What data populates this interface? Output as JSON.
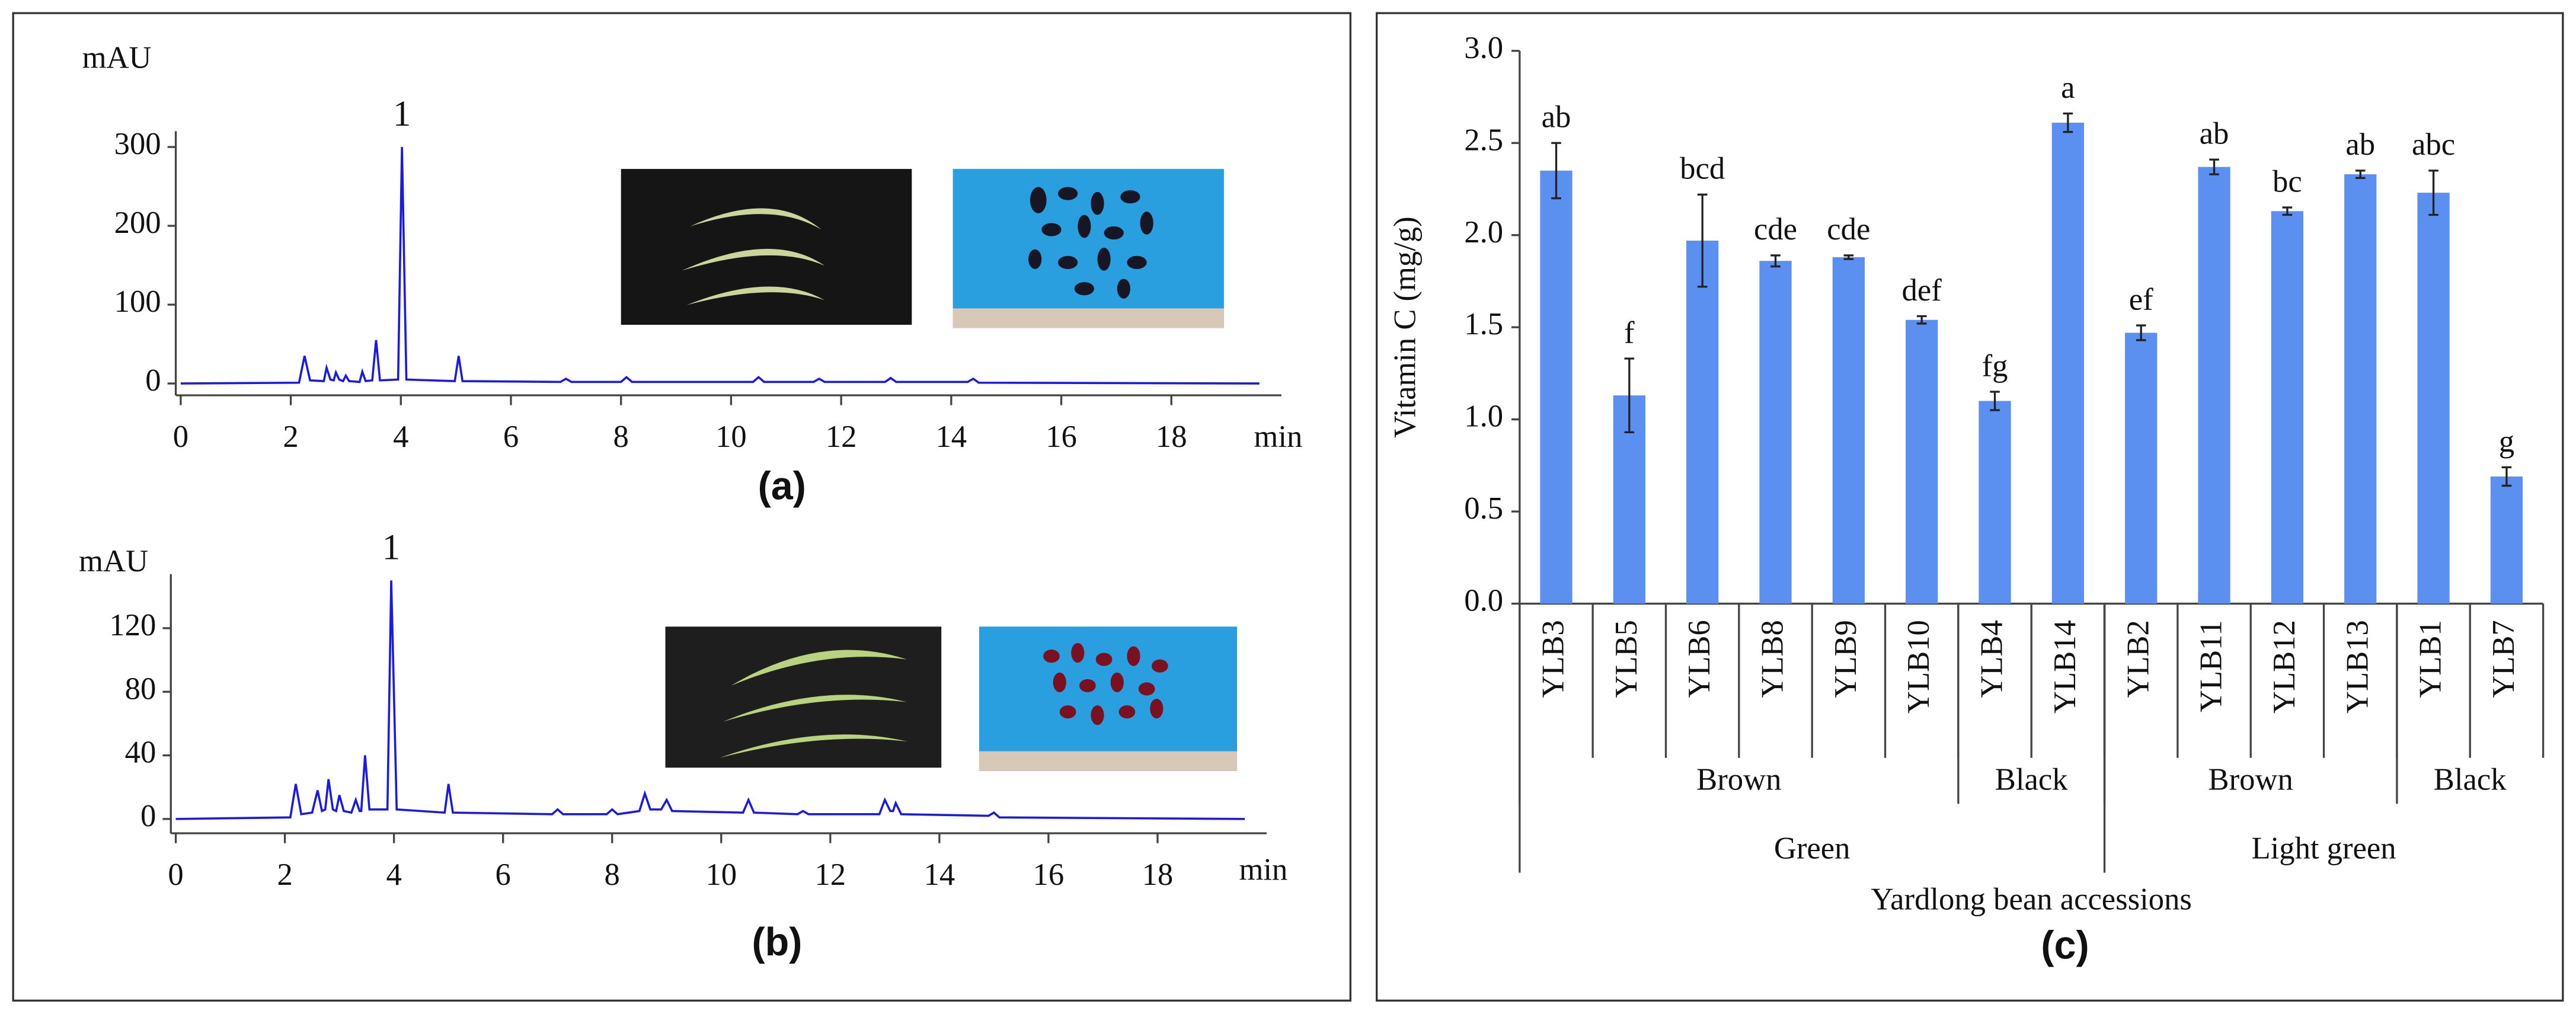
{
  "chart_data": [
    {
      "type": "line",
      "caption": "(a)",
      "y_unit": "mAU",
      "x_unit": "min",
      "xlim": [
        0,
        20
      ],
      "xticks": [
        0,
        2,
        4,
        6,
        8,
        10,
        12,
        14,
        16,
        18
      ],
      "ylim": [
        -15,
        320
      ],
      "yticks": [
        0,
        100,
        200,
        300
      ],
      "annotations": [
        {
          "text": "1",
          "x": 4.02,
          "y": 300
        }
      ],
      "x": [
        0,
        2.15,
        2.25,
        2.35,
        2.6,
        2.65,
        2.72,
        2.78,
        2.82,
        2.88,
        2.95,
        3.0,
        3.06,
        3.25,
        3.3,
        3.36,
        3.48,
        3.55,
        3.62,
        3.95,
        4.02,
        4.1,
        4.98,
        5.05,
        5.12,
        6.9,
        7.0,
        7.1,
        8.0,
        8.1,
        8.2,
        10.4,
        10.5,
        10.6,
        11.5,
        11.6,
        11.7,
        12.8,
        12.9,
        13.0,
        14.3,
        14.4,
        14.5,
        19.6
      ],
      "series": [
        {
          "color": "#1a1ae6",
          "values": [
            0,
            1,
            35,
            4,
            3,
            20,
            5,
            4,
            14,
            5,
            3,
            10,
            3,
            2,
            15,
            3,
            4,
            55,
            4,
            5,
            300,
            5,
            3,
            35,
            3,
            2,
            6,
            2,
            2,
            8,
            2,
            2,
            8,
            2,
            2,
            6,
            2,
            2,
            7,
            2,
            2,
            6,
            1,
            0
          ]
        }
      ]
    },
    {
      "type": "line",
      "caption": "(b)",
      "y_unit": "mAU",
      "x_unit": "min",
      "xlim": [
        0,
        20
      ],
      "xticks": [
        0,
        2,
        4,
        6,
        8,
        10,
        12,
        14,
        16,
        18
      ],
      "ylim": [
        -9,
        154
      ],
      "yticks": [
        0,
        40,
        80,
        120
      ],
      "annotations": [
        {
          "text": "1",
          "x": 3.95,
          "y": 150
        }
      ],
      "x": [
        0,
        2.1,
        2.2,
        2.3,
        2.5,
        2.6,
        2.68,
        2.74,
        2.8,
        2.88,
        2.94,
        3.0,
        3.08,
        3.22,
        3.3,
        3.37,
        3.4,
        3.47,
        3.55,
        3.88,
        3.95,
        4.05,
        4.93,
        5.0,
        5.08,
        6.9,
        7.0,
        7.1,
        7.9,
        8.0,
        8.1,
        8.5,
        8.6,
        8.7,
        8.9,
        9.0,
        9.1,
        10.4,
        10.5,
        10.6,
        11.4,
        11.5,
        11.6,
        12.9,
        13.0,
        13.1,
        13.15,
        13.2,
        13.3,
        14.9,
        15.0,
        15.1,
        19.6
      ],
      "series": [
        {
          "color": "#1a1ae6",
          "values": [
            0,
            1,
            22,
            3,
            4,
            18,
            5,
            6,
            25,
            6,
            5,
            15,
            5,
            4,
            12,
            5,
            5,
            40,
            6,
            6,
            150,
            6,
            4,
            22,
            4,
            3,
            6,
            3,
            3,
            6,
            3,
            5,
            16,
            6,
            6,
            12,
            5,
            4,
            12,
            4,
            3,
            5,
            3,
            3,
            12,
            5,
            5,
            10,
            3,
            2,
            4,
            1,
            0
          ]
        }
      ]
    },
    {
      "type": "bar",
      "caption": "(c)",
      "y_label": "Vitamin C (mg/g)",
      "x_label": "Yardlong bean accessions",
      "color": "#5b8ff0",
      "ylim": [
        0,
        3
      ],
      "yticks": [
        {
          "value": 0,
          "label": "0.0"
        },
        0.5,
        {
          "value": 1,
          "label": "1.0"
        },
        1.5,
        {
          "value": 2,
          "label": "2.0"
        },
        2.5,
        {
          "value": 3,
          "label": "3.0"
        }
      ],
      "categories": [
        "YLB3",
        "YLB5",
        "YLB6",
        "YLB8",
        "YLB9",
        "YLB10",
        "YLB4",
        "YLB14",
        "YLB2",
        "YLB11",
        "YLB12",
        "YLB13",
        "YLB1",
        "YLB7"
      ],
      "values": [
        2.35,
        1.13,
        1.97,
        1.86,
        1.88,
        1.54,
        1.1,
        2.61,
        1.47,
        2.37,
        2.13,
        2.33,
        2.23,
        0.69
      ],
      "errors": [
        0.15,
        0.2,
        0.25,
        0.03,
        0.01,
        0.02,
        0.05,
        0.05,
        0.04,
        0.04,
        0.02,
        0.02,
        0.12,
        0.05
      ],
      "significance_letters": [
        "ab",
        "f",
        "bcd",
        "cde",
        "cde",
        "def",
        "fg",
        "a",
        "ef",
        "ab",
        "bc",
        "ab",
        "abc",
        "g"
      ],
      "groups": [
        [
          {
            "name": "Brown",
            "count": 6
          },
          {
            "name": "Black",
            "count": 2
          },
          {
            "name": "Brown",
            "count": 4
          },
          {
            "name": "Black",
            "count": 2
          }
        ],
        [
          {
            "name": "Green",
            "count": 8
          },
          {
            "name": "Light green",
            "count": 6
          }
        ]
      ]
    }
  ]
}
